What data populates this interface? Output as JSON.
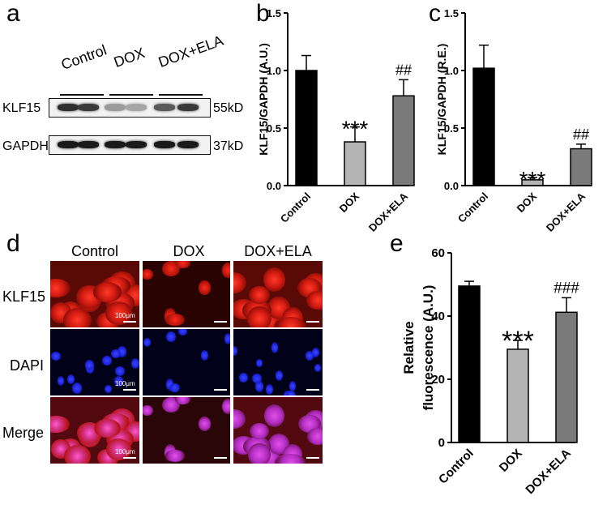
{
  "panel_letters": {
    "a": "a",
    "b": "b",
    "c": "c",
    "d": "d",
    "e": "e"
  },
  "western_blot": {
    "lanes": [
      "Control",
      "DOX",
      "DOX+ELA"
    ],
    "rows": [
      {
        "label": "KLF15",
        "kd": "55kD",
        "intensities": [
          0.85,
          0.8,
          0.35,
          0.3,
          0.65,
          0.8
        ]
      },
      {
        "label": "GAPDH",
        "kd": "37kD",
        "intensities": [
          0.95,
          0.95,
          0.95,
          0.95,
          0.95,
          0.95
        ]
      }
    ]
  },
  "microscopy": {
    "columns": [
      "Control",
      "DOX",
      "DOX+ELA"
    ],
    "rows": [
      "KLF15",
      "DAPI",
      "Merge"
    ],
    "scale_label": "100μm",
    "colors": {
      "klf15": "#e3221c",
      "dapi": "#1a22d8",
      "merge": "#c62fa8"
    }
  },
  "chart_data": [
    {
      "id": "b",
      "type": "bar",
      "categories": [
        "Control",
        "DOX",
        "DOX+ELA"
      ],
      "values": [
        1.0,
        0.38,
        0.78
      ],
      "errors": [
        0.13,
        0.13,
        0.14
      ],
      "annotations": [
        "",
        "***",
        "##"
      ],
      "ylabel": "KLF15/GAPDH (A.U.)",
      "ylim": [
        0,
        1.5
      ],
      "yticks": [
        0.0,
        0.5,
        1.0,
        1.5
      ],
      "ytick_labels": [
        "0.0",
        "0.5",
        "1.0",
        "1.5"
      ],
      "colors": [
        "#000000",
        "#b4b4b4",
        "#7a7a7a"
      ]
    },
    {
      "id": "c",
      "type": "bar",
      "categories": [
        "Control",
        "DOX",
        "DOX+ELA"
      ],
      "values": [
        1.02,
        0.05,
        0.32
      ],
      "errors": [
        0.2,
        0.02,
        0.04
      ],
      "annotations": [
        "",
        "***",
        "##"
      ],
      "ylabel": "KLF15/GAPDH (R.E.)",
      "ylim": [
        0,
        1.5
      ],
      "yticks": [
        0.0,
        0.5,
        1.0,
        1.5
      ],
      "ytick_labels": [
        "0.0",
        "0.5",
        "1.0",
        "1.5"
      ],
      "colors": [
        "#000000",
        "#b4b4b4",
        "#7a7a7a"
      ]
    },
    {
      "id": "e",
      "type": "bar",
      "categories": [
        "Control",
        "DOX",
        "DOX+ELA"
      ],
      "values": [
        49.5,
        29.5,
        41.2
      ],
      "errors": [
        1.5,
        2.8,
        4.6
      ],
      "annotations": [
        "",
        "***",
        "###"
      ],
      "ylabel_lines": [
        "Relative",
        "fluorescence (A.U.)"
      ],
      "ylim": [
        0,
        60
      ],
      "yticks": [
        0,
        20,
        40,
        60
      ],
      "ytick_labels": [
        "0",
        "20",
        "40",
        "60"
      ],
      "colors": [
        "#000000",
        "#b4b4b4",
        "#7a7a7a"
      ]
    }
  ]
}
